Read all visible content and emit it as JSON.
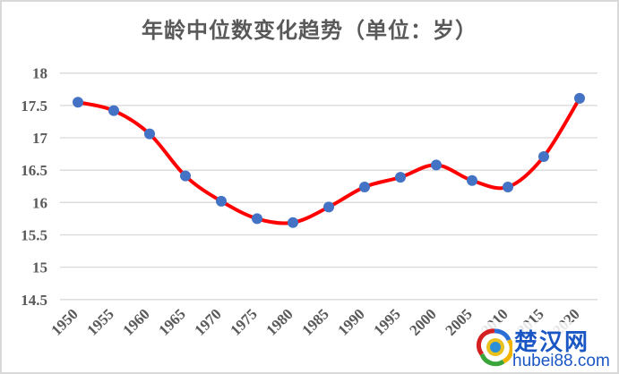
{
  "title": "年龄中位数变化趋势（单位：岁）",
  "watermark": {
    "cn": "楚汉网",
    "url": "hubei88.com"
  },
  "colors": {
    "line": "#ff0000",
    "marker": "#4472c4",
    "grid": "#d9d9d9",
    "text": "#595959",
    "border": "#d9d9d9"
  },
  "chart_data": {
    "type": "line",
    "title": "年龄中位数变化趋势（单位：岁）",
    "xlabel": "",
    "ylabel": "",
    "categories": [
      "1950",
      "1955",
      "1960",
      "1965",
      "1970",
      "1975",
      "1980",
      "1985",
      "1990",
      "1995",
      "2000",
      "2005",
      "2010",
      "2015",
      "2020"
    ],
    "series": [
      {
        "name": "年龄中位数",
        "values": [
          17.55,
          17.42,
          17.06,
          16.41,
          16.02,
          15.75,
          15.69,
          15.93,
          16.24,
          16.39,
          16.58,
          16.34,
          16.24,
          16.71,
          17.61
        ],
        "smooth": true,
        "markers": true
      }
    ],
    "yticks": [
      "14.5",
      "15",
      "15.5",
      "16",
      "16.5",
      "17",
      "17.5",
      "18"
    ],
    "ylim": [
      14.5,
      18
    ],
    "grid": true,
    "legend": "none",
    "xtick_rotation": -45
  }
}
